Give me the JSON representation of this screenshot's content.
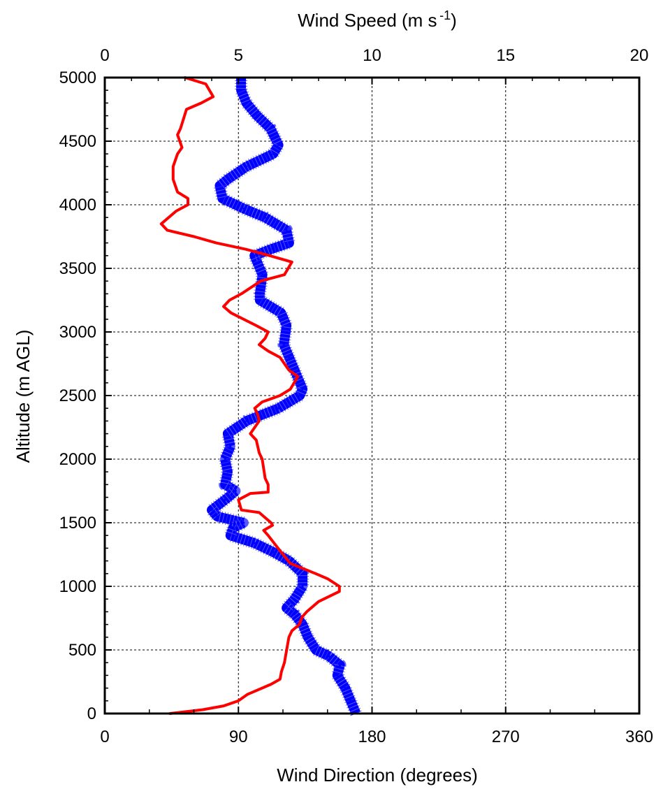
{
  "chart_data": {
    "type": "line",
    "title": "",
    "top_axis": {
      "label": "Wind Speed (m s",
      "label_sup": "-1",
      "label_close": ")",
      "range": [
        0,
        20
      ],
      "ticks": [
        0,
        5,
        10,
        15,
        20
      ],
      "tick_labels": [
        "0",
        "5",
        "10",
        "15",
        "20"
      ]
    },
    "bottom_axis": {
      "label": "Wind Direction (degrees)",
      "range": [
        0,
        360
      ],
      "ticks": [
        0,
        90,
        180,
        270,
        360
      ],
      "tick_labels": [
        "0",
        "90",
        "180",
        "270",
        "360"
      ]
    },
    "y_axis": {
      "label": "Altitude (m AGL)",
      "range": [
        0,
        5000
      ],
      "ticks": [
        0,
        500,
        1000,
        1500,
        2000,
        2500,
        3000,
        3500,
        4000,
        4500,
        5000
      ],
      "tick_labels": [
        "0",
        "500",
        "1000",
        "1500",
        "2000",
        "2500",
        "3000",
        "3500",
        "4000",
        "4500",
        "5000"
      ]
    },
    "grid": true,
    "series": [
      {
        "color": "#0000ff",
        "axis": "top",
        "style": "thick-hatched",
        "points": [
          [
            9.4,
            0
          ],
          [
            9.2,
            100
          ],
          [
            9.0,
            200
          ],
          [
            8.7,
            300
          ],
          [
            8.8,
            380
          ],
          [
            8.4,
            450
          ],
          [
            7.9,
            500
          ],
          [
            7.6,
            600
          ],
          [
            7.4,
            700
          ],
          [
            7.1,
            780
          ],
          [
            6.8,
            830
          ],
          [
            7.1,
            900
          ],
          [
            7.4,
            1000
          ],
          [
            7.4,
            1100
          ],
          [
            6.9,
            1200
          ],
          [
            6.3,
            1270
          ],
          [
            5.6,
            1340
          ],
          [
            4.7,
            1400
          ],
          [
            4.8,
            1460
          ],
          [
            5.2,
            1500
          ],
          [
            4.2,
            1550
          ],
          [
            4.0,
            1600
          ],
          [
            4.5,
            1680
          ],
          [
            4.9,
            1750
          ],
          [
            4.5,
            1800
          ],
          [
            4.6,
            1900
          ],
          [
            4.5,
            2000
          ],
          [
            4.7,
            2100
          ],
          [
            4.6,
            2200
          ],
          [
            5.3,
            2300
          ],
          [
            6.5,
            2400
          ],
          [
            7.3,
            2500
          ],
          [
            7.4,
            2550
          ],
          [
            7.2,
            2650
          ],
          [
            6.9,
            2800
          ],
          [
            6.7,
            2900
          ],
          [
            6.8,
            3050
          ],
          [
            6.6,
            3150
          ],
          [
            5.8,
            3250
          ],
          [
            5.8,
            3300
          ],
          [
            5.9,
            3450
          ],
          [
            5.6,
            3600
          ],
          [
            6.2,
            3650
          ],
          [
            6.9,
            3700
          ],
          [
            6.8,
            3800
          ],
          [
            6.0,
            3900
          ],
          [
            5.2,
            3970
          ],
          [
            4.4,
            4050
          ],
          [
            4.3,
            4150
          ],
          [
            4.6,
            4200
          ],
          [
            5.3,
            4300
          ],
          [
            6.3,
            4400
          ],
          [
            6.5,
            4470
          ],
          [
            6.2,
            4600
          ],
          [
            5.7,
            4700
          ],
          [
            5.3,
            4800
          ],
          [
            5.1,
            4900
          ],
          [
            5.1,
            5000
          ]
        ]
      },
      {
        "color": "#ff0000",
        "axis": "bottom",
        "style": "solid",
        "points": [
          [
            44,
            0
          ],
          [
            66,
            30
          ],
          [
            80,
            60
          ],
          [
            90,
            100
          ],
          [
            96,
            150
          ],
          [
            112,
            230
          ],
          [
            118,
            270
          ],
          [
            119,
            330
          ],
          [
            121,
            400
          ],
          [
            124,
            600
          ],
          [
            126,
            650
          ],
          [
            131,
            700
          ],
          [
            133,
            760
          ],
          [
            136,
            800
          ],
          [
            144,
            880
          ],
          [
            158,
            960
          ],
          [
            158,
            1000
          ],
          [
            150,
            1060
          ],
          [
            142,
            1100
          ],
          [
            125,
            1180
          ],
          [
            118,
            1280
          ],
          [
            110,
            1400
          ],
          [
            107,
            1440
          ],
          [
            113,
            1480
          ],
          [
            112,
            1500
          ],
          [
            104,
            1580
          ],
          [
            92,
            1600
          ],
          [
            90,
            1680
          ],
          [
            98,
            1730
          ],
          [
            110,
            1740
          ],
          [
            110,
            1800
          ],
          [
            108,
            1850
          ],
          [
            106,
            2000
          ],
          [
            104,
            2050
          ],
          [
            102,
            2150
          ],
          [
            98,
            2200
          ],
          [
            104,
            2300
          ],
          [
            103,
            2350
          ],
          [
            101,
            2400
          ],
          [
            106,
            2450
          ],
          [
            118,
            2500
          ],
          [
            125,
            2550
          ],
          [
            130,
            2650
          ],
          [
            124,
            2700
          ],
          [
            118,
            2800
          ],
          [
            110,
            2850
          ],
          [
            104,
            2900
          ],
          [
            108,
            2950
          ],
          [
            110,
            3000
          ],
          [
            102,
            3050
          ],
          [
            85,
            3150
          ],
          [
            80,
            3200
          ],
          [
            84,
            3250
          ],
          [
            92,
            3300
          ],
          [
            105,
            3400
          ],
          [
            121,
            3450
          ],
          [
            126,
            3550
          ],
          [
            111,
            3600
          ],
          [
            95,
            3650
          ],
          [
            75,
            3700
          ],
          [
            60,
            3750
          ],
          [
            42,
            3800
          ],
          [
            38,
            3850
          ],
          [
            48,
            3950
          ],
          [
            56,
            4000
          ],
          [
            56,
            4050
          ],
          [
            49,
            4100
          ],
          [
            46,
            4200
          ],
          [
            46,
            4300
          ],
          [
            49,
            4400
          ],
          [
            52,
            4450
          ],
          [
            49,
            4550
          ],
          [
            51,
            4600
          ],
          [
            55,
            4750
          ],
          [
            65,
            4800
          ],
          [
            73,
            4850
          ],
          [
            68,
            4950
          ],
          [
            54,
            5000
          ]
        ]
      }
    ]
  }
}
